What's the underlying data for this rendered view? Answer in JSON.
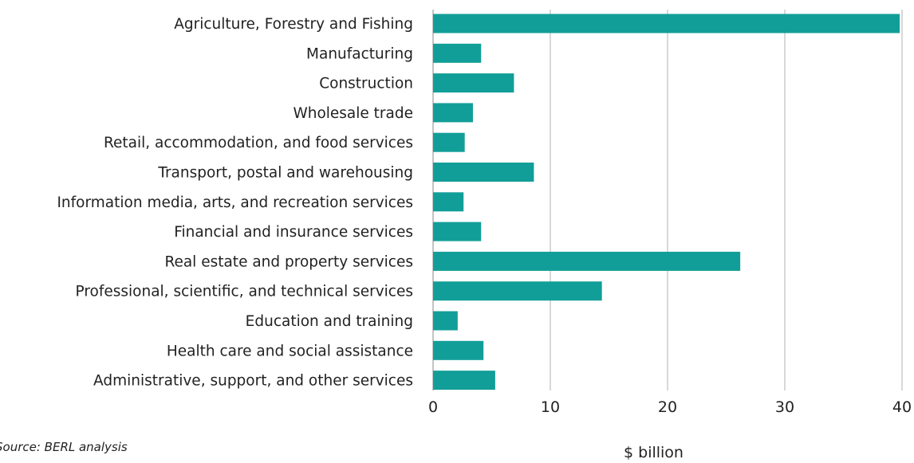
{
  "chart_data": {
    "type": "bar",
    "orientation": "horizontal",
    "categories": [
      "Agriculture, Forestry and Fishing",
      "Manufacturing",
      "Construction",
      "Wholesale trade",
      "Retail, accommodation, and food services",
      "Transport, postal and warehousing",
      "Information media, arts, and recreation services",
      "Financial and insurance services",
      "Real estate and property services",
      "Professional, scientific, and technical services",
      "Education and training",
      "Health care and social assistance",
      "Administrative, support, and other services"
    ],
    "values": [
      39.8,
      4.1,
      6.9,
      3.4,
      2.7,
      8.6,
      2.6,
      4.1,
      26.2,
      14.4,
      2.1,
      4.3,
      5.3
    ],
    "xlim": [
      0,
      40
    ],
    "xticks": [
      0,
      10,
      20,
      30,
      40
    ],
    "xlabel": "$ billion",
    "grid": "vertical",
    "bar_color": "#129e98",
    "grid_color": "#b0b0b0"
  },
  "source": "Source: BERL analysis"
}
